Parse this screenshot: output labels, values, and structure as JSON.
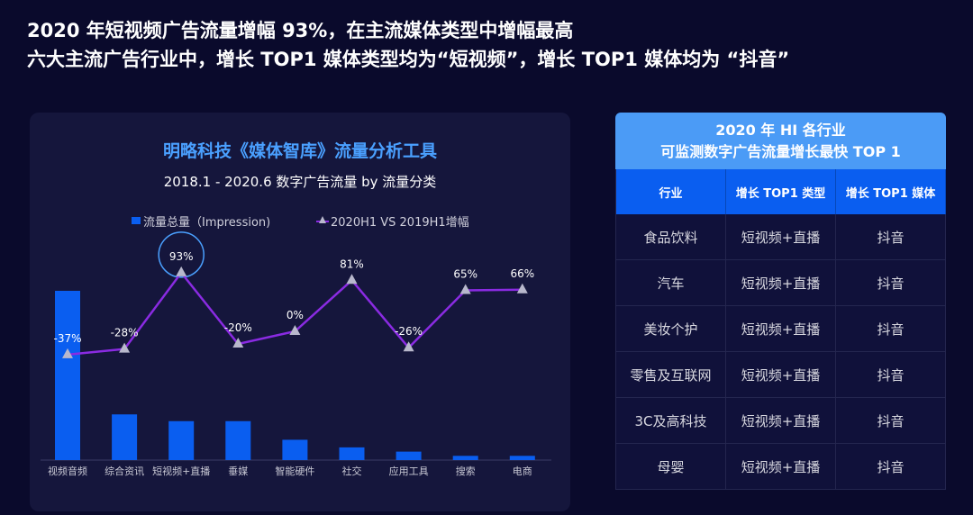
{
  "headline": {
    "line1": "2020 年短视频广告流量增幅 93%，在主流媒体类型中增幅最高",
    "line2": "六大主流广告行业中，增长 TOP1 媒体类型均为“短视频”，增长 TOP1 媒体均为 “抖音”"
  },
  "chart_data": {
    "type": "bar+line",
    "title": "明略科技《媒体智库》流量分析工具",
    "subtitle": "2018.1 - 2020.6 数字广告流量 by 流量分类",
    "categories": [
      "视频音频",
      "综合资讯",
      "短视频+直播",
      "垂媒",
      "智能硬件",
      "社交",
      "应用工具",
      "搜索",
      "电商"
    ],
    "series": [
      {
        "name": "流量总量（Impression)",
        "type": "bar",
        "color": "#0a5ef0",
        "values": [
          100,
          27,
          23,
          23,
          12,
          7.5,
          5,
          2.5,
          2.5
        ]
      },
      {
        "name": "2020H1 VS 2019H1增幅",
        "type": "line",
        "color": "#8a2be2",
        "unit": "%",
        "values": [
          -37,
          -28,
          93,
          -20,
          0,
          81,
          -26,
          65,
          66
        ]
      }
    ],
    "highlight": "短视频+直播",
    "legend": "top",
    "grid": false
  },
  "table": {
    "title_line1": "2020 年 HI 各行业",
    "title_line2": "可监测数字广告流量增长最快 TOP 1",
    "columns": [
      "行业",
      "增长 TOP1 类型",
      "增长 TOP1 媒体"
    ],
    "rows": [
      [
        "食品饮料",
        "短视频+直播",
        "抖音"
      ],
      [
        "汽车",
        "短视频+直播",
        "抖音"
      ],
      [
        "美妆个护",
        "短视频+直播",
        "抖音"
      ],
      [
        "零售及互联网",
        "短视频+直播",
        "抖音"
      ],
      [
        "3C及高科技",
        "短视频+直播",
        "抖音"
      ],
      [
        "母婴",
        "短视频+直播",
        "抖音"
      ]
    ]
  }
}
